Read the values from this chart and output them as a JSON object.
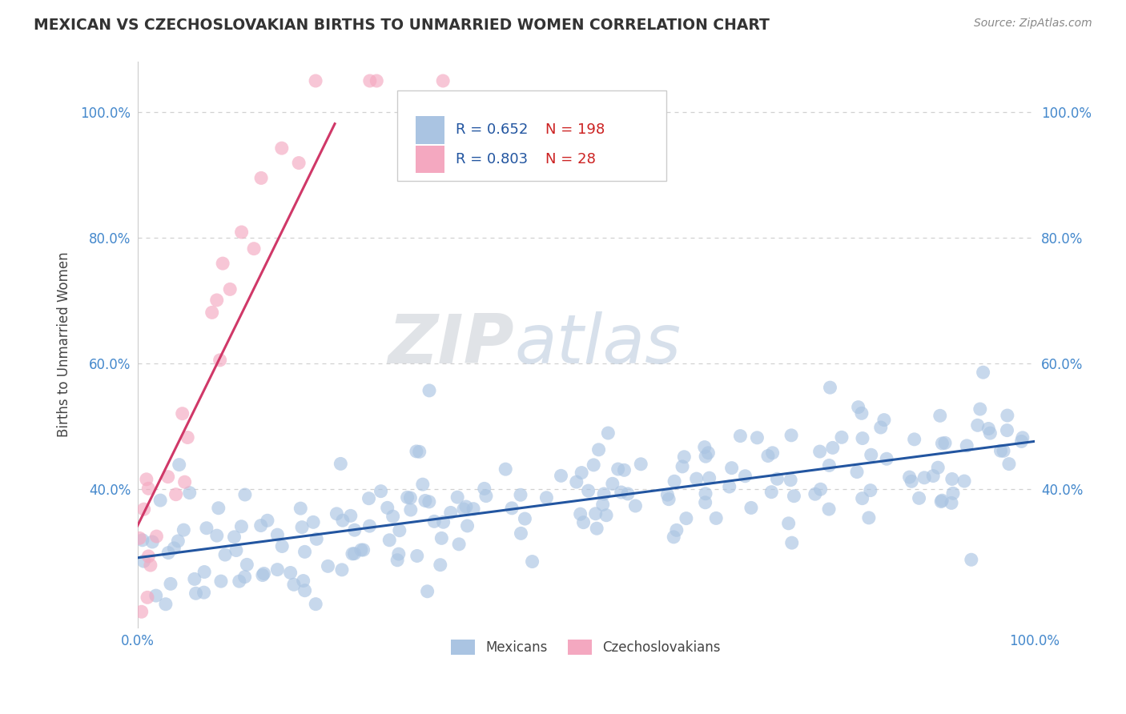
{
  "title": "MEXICAN VS CZECHOSLOVAKIAN BIRTHS TO UNMARRIED WOMEN CORRELATION CHART",
  "source": "Source: ZipAtlas.com",
  "xlabel_blue": "Mexicans",
  "xlabel_pink": "Czechoslovakians",
  "ylabel": "Births to Unmarried Women",
  "watermark_zip": "ZIP",
  "watermark_atlas": "atlas",
  "blue_R": 0.652,
  "blue_N": 198,
  "pink_R": 0.803,
  "pink_N": 28,
  "blue_color": "#aac4e2",
  "pink_color": "#f4a8c0",
  "blue_line_color": "#2255a0",
  "pink_line_color": "#d03868",
  "xlim": [
    0.0,
    1.0
  ],
  "ylim": [
    0.18,
    1.08
  ],
  "x_ticks": [
    0.0,
    1.0
  ],
  "x_tick_labels": [
    "0.0%",
    "100.0%"
  ],
  "y_ticks": [
    0.4,
    0.6,
    0.8,
    1.0
  ],
  "y_tick_labels": [
    "40.0%",
    "60.0%",
    "80.0%",
    "100.0%"
  ],
  "right_y_ticks": [
    0.4,
    0.6,
    0.8,
    1.0
  ],
  "right_y_tick_labels": [
    "40.0%",
    "60.0%",
    "80.0%",
    "100.0%"
  ],
  "grid_color": "#cccccc",
  "background_color": "#ffffff",
  "title_color": "#333333",
  "tick_color": "#4488cc",
  "legend_R_color": "#2255a0",
  "legend_N_color": "#cc2222"
}
